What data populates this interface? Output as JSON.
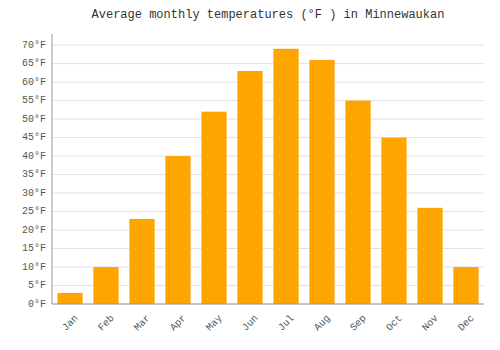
{
  "chart_data": {
    "type": "bar",
    "title": "Average monthly temperatures (°F ) in Minnewaukan",
    "categories": [
      "Jan",
      "Feb",
      "Mar",
      "Apr",
      "May",
      "Jun",
      "Jul",
      "Aug",
      "Sep",
      "Oct",
      "Nov",
      "Dec"
    ],
    "values": [
      3,
      10,
      23,
      40,
      52,
      63,
      69,
      66,
      55,
      45,
      26,
      10
    ],
    "color": "#FFA500",
    "ylim": [
      0,
      73
    ],
    "yticks": [
      {
        "value": 0,
        "label": "0°F"
      },
      {
        "value": 5,
        "label": "5°F"
      },
      {
        "value": 10,
        "label": "10°F"
      },
      {
        "value": 15,
        "label": "15°F"
      },
      {
        "value": 20,
        "label": "20°F"
      },
      {
        "value": 25,
        "label": "25°F"
      },
      {
        "value": 30,
        "label": "30°F"
      },
      {
        "value": 35,
        "label": "35°F"
      },
      {
        "value": 40,
        "label": "40°F"
      },
      {
        "value": 45,
        "label": "45°F"
      },
      {
        "value": 50,
        "label": "50°F"
      },
      {
        "value": 55,
        "label": "55°F"
      },
      {
        "value": 60,
        "label": "60°F"
      },
      {
        "value": 65,
        "label": "65°F"
      },
      {
        "value": 70,
        "label": "70°F"
      }
    ],
    "grid": true
  }
}
